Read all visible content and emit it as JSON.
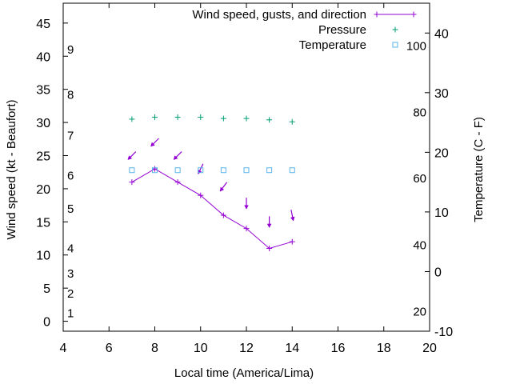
{
  "chart_data": {
    "type": "line",
    "xlabel": "Local time (America/Lima)",
    "ylabel": "Wind speed (kt - Beaufort)",
    "y2label": "Temperature (C - F)",
    "xlim": [
      4,
      20
    ],
    "ylim": [
      -1.5,
      48
    ],
    "y2lim": [
      -10,
      45
    ],
    "x_ticks": [
      4,
      6,
      8,
      10,
      12,
      14,
      16,
      18,
      20
    ],
    "y_ticks": [
      0,
      5,
      10,
      15,
      20,
      25,
      30,
      35,
      40,
      45
    ],
    "y2_ticks": [
      -10,
      0,
      10,
      20,
      30,
      40
    ],
    "beaufort_labels": [
      {
        "label": "1",
        "kt": 1.2
      },
      {
        "label": "2",
        "kt": 4.2
      },
      {
        "label": "3",
        "kt": 7.2
      },
      {
        "label": "4",
        "kt": 11
      },
      {
        "label": "5",
        "kt": 17
      },
      {
        "label": "6",
        "kt": 22
      },
      {
        "label": "7",
        "kt": 28
      },
      {
        "label": "8",
        "kt": 34.2
      },
      {
        "label": "9",
        "kt": 41
      }
    ],
    "fahrenheit_labels": [
      {
        "label": "20",
        "celsius": -6.7
      },
      {
        "label": "40",
        "celsius": 4.4
      },
      {
        "label": "60",
        "celsius": 15.6
      },
      {
        "label": "80",
        "celsius": 26.7
      },
      {
        "label": "100",
        "celsius": 37.8
      }
    ],
    "legend_position": "top-right",
    "series": [
      {
        "name": "Wind speed, gusts, and direction",
        "color": "#9400d3",
        "x": [
          7,
          8,
          9,
          10,
          11,
          12,
          13,
          14
        ],
        "y": [
          21,
          23,
          21,
          19,
          16,
          14,
          11,
          12
        ],
        "direction_arrows": [
          {
            "x": 7,
            "y": 25,
            "dx": -1,
            "dy": -1
          },
          {
            "x": 8,
            "y": 27,
            "dx": -1,
            "dy": -1
          },
          {
            "x": 9,
            "y": 25,
            "dx": -1,
            "dy": -1
          },
          {
            "x": 10,
            "y": 23,
            "dx": -0.5,
            "dy": -1
          },
          {
            "x": 11,
            "y": 20.3,
            "dx": -0.6,
            "dy": -0.8
          },
          {
            "x": 12,
            "y": 17.8,
            "dx": 0,
            "dy": -1
          },
          {
            "x": 13,
            "y": 15,
            "dx": 0,
            "dy": -1
          },
          {
            "x": 14,
            "y": 16,
            "dx": 0.2,
            "dy": -1
          }
        ]
      },
      {
        "name": "Pressure",
        "color": "#009e73",
        "x": [
          7,
          8,
          9,
          10,
          11,
          12,
          13,
          14
        ],
        "y": [
          30.5,
          30.8,
          30.8,
          30.8,
          30.6,
          30.6,
          30.4,
          30.1
        ]
      },
      {
        "name": "Temperature",
        "color": "#56b4e9",
        "axis": "y2",
        "x": [
          7,
          8,
          9,
          10,
          11,
          12,
          13,
          14
        ],
        "y": [
          17,
          17,
          17,
          17,
          17,
          17,
          17,
          17
        ]
      }
    ]
  }
}
